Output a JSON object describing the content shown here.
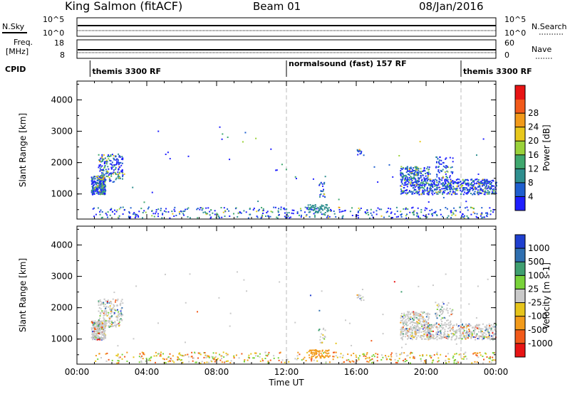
{
  "header": {
    "title": "King Salmon (fitACF)",
    "beam": "Beam 01",
    "date": "08/Jan/2016"
  },
  "labels": {
    "nsky": "N.Sky",
    "nsearch": "N.Search",
    "freq_line1": "Freq.",
    "freq_line2": "[MHz]",
    "nave": "Nave",
    "cpid": "CPID",
    "nsky_ticks": [
      "10^5",
      "10^0"
    ],
    "nsearch_ticks": [
      "10^5",
      "10^0"
    ],
    "freq_ticks": [
      "18",
      "8"
    ],
    "nave_ticks": [
      "60",
      "0"
    ]
  },
  "cpid_segments": [
    {
      "label": "themis 3300 RF",
      "start_hour": 0.75
    },
    {
      "label": "normalsound (fast) 157 RF",
      "start_hour": 12.0
    },
    {
      "label": "themis 3300 RF",
      "start_hour": 22.0
    }
  ],
  "chart_data": [
    {
      "type": "heatmap",
      "name": "power-panel",
      "xlabel": "",
      "ylabel": "Slant Range [km]",
      "xlim": [
        0,
        24
      ],
      "ylim": [
        200,
        4600
      ],
      "yticks": [
        "1000",
        "2000",
        "3000",
        "4000"
      ],
      "colorbar": {
        "label": "Power [dB]",
        "ticks": [
          "4",
          "8",
          "12",
          "16",
          "20",
          "24",
          "28"
        ],
        "colors": [
          "#1f1fff",
          "#1f5fcf",
          "#2f8f8f",
          "#3fa86f",
          "#9ad23a",
          "#e8c81c",
          "#f29a1a",
          "#f25a1a",
          "#e81414"
        ]
      },
      "regions": [
        {
          "t0": 0.8,
          "t1": 2.5,
          "r0": 1000,
          "r1": 2300,
          "level": "mixed"
        },
        {
          "t0": 0.8,
          "t1": 24,
          "r0": 250,
          "r1": 600,
          "level": "low"
        },
        {
          "t0": 18.5,
          "t1": 24,
          "r0": 1000,
          "r1": 1900,
          "level": "mixed"
        },
        {
          "t0": 13.2,
          "t1": 14.5,
          "r0": 450,
          "r1": 650,
          "level": "high"
        }
      ]
    },
    {
      "type": "heatmap",
      "name": "velocity-panel",
      "xlabel": "Time UT",
      "ylabel": "Slant Range [km]",
      "xlim": [
        0,
        24
      ],
      "ylim": [
        200,
        4600
      ],
      "xticks": [
        "00:00",
        "04:00",
        "08:00",
        "12:00",
        "16:00",
        "20:00",
        "00:00"
      ],
      "yticks": [
        "1000",
        "2000",
        "3000",
        "4000"
      ],
      "colorbar": {
        "label": "Velocity [m s-1]",
        "ticks": [
          "1000",
          "500",
          "100",
          "25",
          "-25",
          "-100",
          "-500",
          "-1000"
        ],
        "colors": [
          "#1f3fcf",
          "#2f6fb0",
          "#3f9f70",
          "#79d23a",
          "#c9c9c9",
          "#e6c41a",
          "#f29a1a",
          "#f25a1a",
          "#e81414"
        ]
      }
    }
  ],
  "colors": {
    "gridline": "#bbbbbb"
  }
}
